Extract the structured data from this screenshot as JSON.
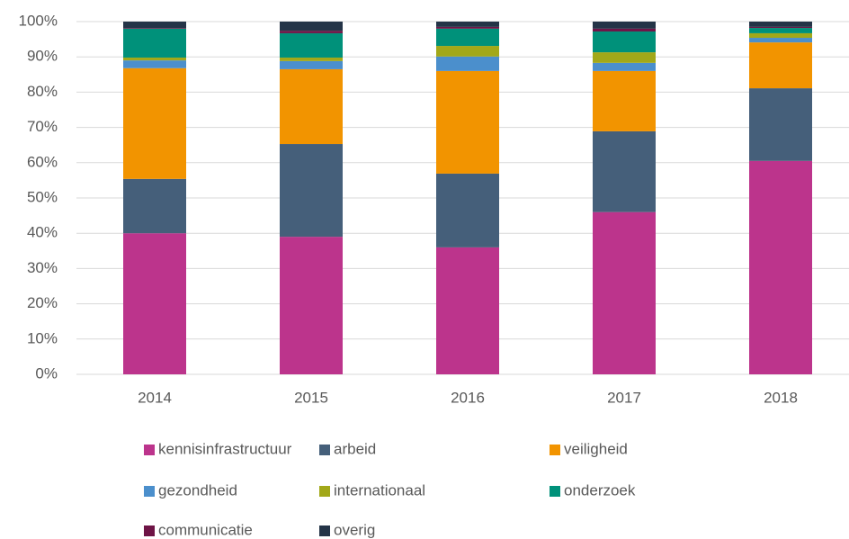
{
  "chart_data": {
    "type": "stacked_bar",
    "categories": [
      "2014",
      "2015",
      "2016",
      "2017",
      "2018"
    ],
    "series": [
      {
        "name": "kennisinfrastructuur",
        "color": "#bc348c",
        "values": [
          40.0,
          39.0,
          36.0,
          46.0,
          60.5
        ]
      },
      {
        "name": "arbeid",
        "color": "#455f7a",
        "values": [
          15.4,
          26.3,
          20.9,
          22.9,
          20.6
        ]
      },
      {
        "name": "veiligheid",
        "color": "#f29400",
        "values": [
          31.4,
          21.2,
          29.1,
          17.1,
          13.0
        ]
      },
      {
        "name": "gezondheid",
        "color": "#4b8fcc",
        "values": [
          2.2,
          2.3,
          4.1,
          2.3,
          1.3
        ]
      },
      {
        "name": "internationaal",
        "color": "#a2a819",
        "values": [
          0.8,
          1.0,
          3.0,
          3.0,
          1.3
        ]
      },
      {
        "name": "onderzoek",
        "color": "#00917a",
        "values": [
          8.2,
          6.9,
          4.9,
          5.9,
          1.5
        ]
      },
      {
        "name": "communicatie",
        "color": "#6e1446",
        "values": [
          0.2,
          0.7,
          0.5,
          0.8,
          0.3
        ]
      },
      {
        "name": "overig",
        "color": "#243447",
        "values": [
          1.8,
          2.6,
          1.5,
          2.0,
          1.5
        ]
      }
    ],
    "ylim": [
      0,
      100
    ],
    "yticks": [
      {
        "value": 0,
        "label": "0%"
      },
      {
        "value": 10,
        "label": "10%"
      },
      {
        "value": 20,
        "label": "20%"
      },
      {
        "value": 30,
        "label": "30%"
      },
      {
        "value": 40,
        "label": "40%"
      },
      {
        "value": 50,
        "label": "50%"
      },
      {
        "value": 60,
        "label": "60%"
      },
      {
        "value": 70,
        "label": "70%"
      },
      {
        "value": 80,
        "label": "80%"
      },
      {
        "value": 90,
        "label": "90%"
      },
      {
        "value": 100,
        "label": "100%"
      }
    ],
    "grid": true,
    "legend": "bottom"
  }
}
